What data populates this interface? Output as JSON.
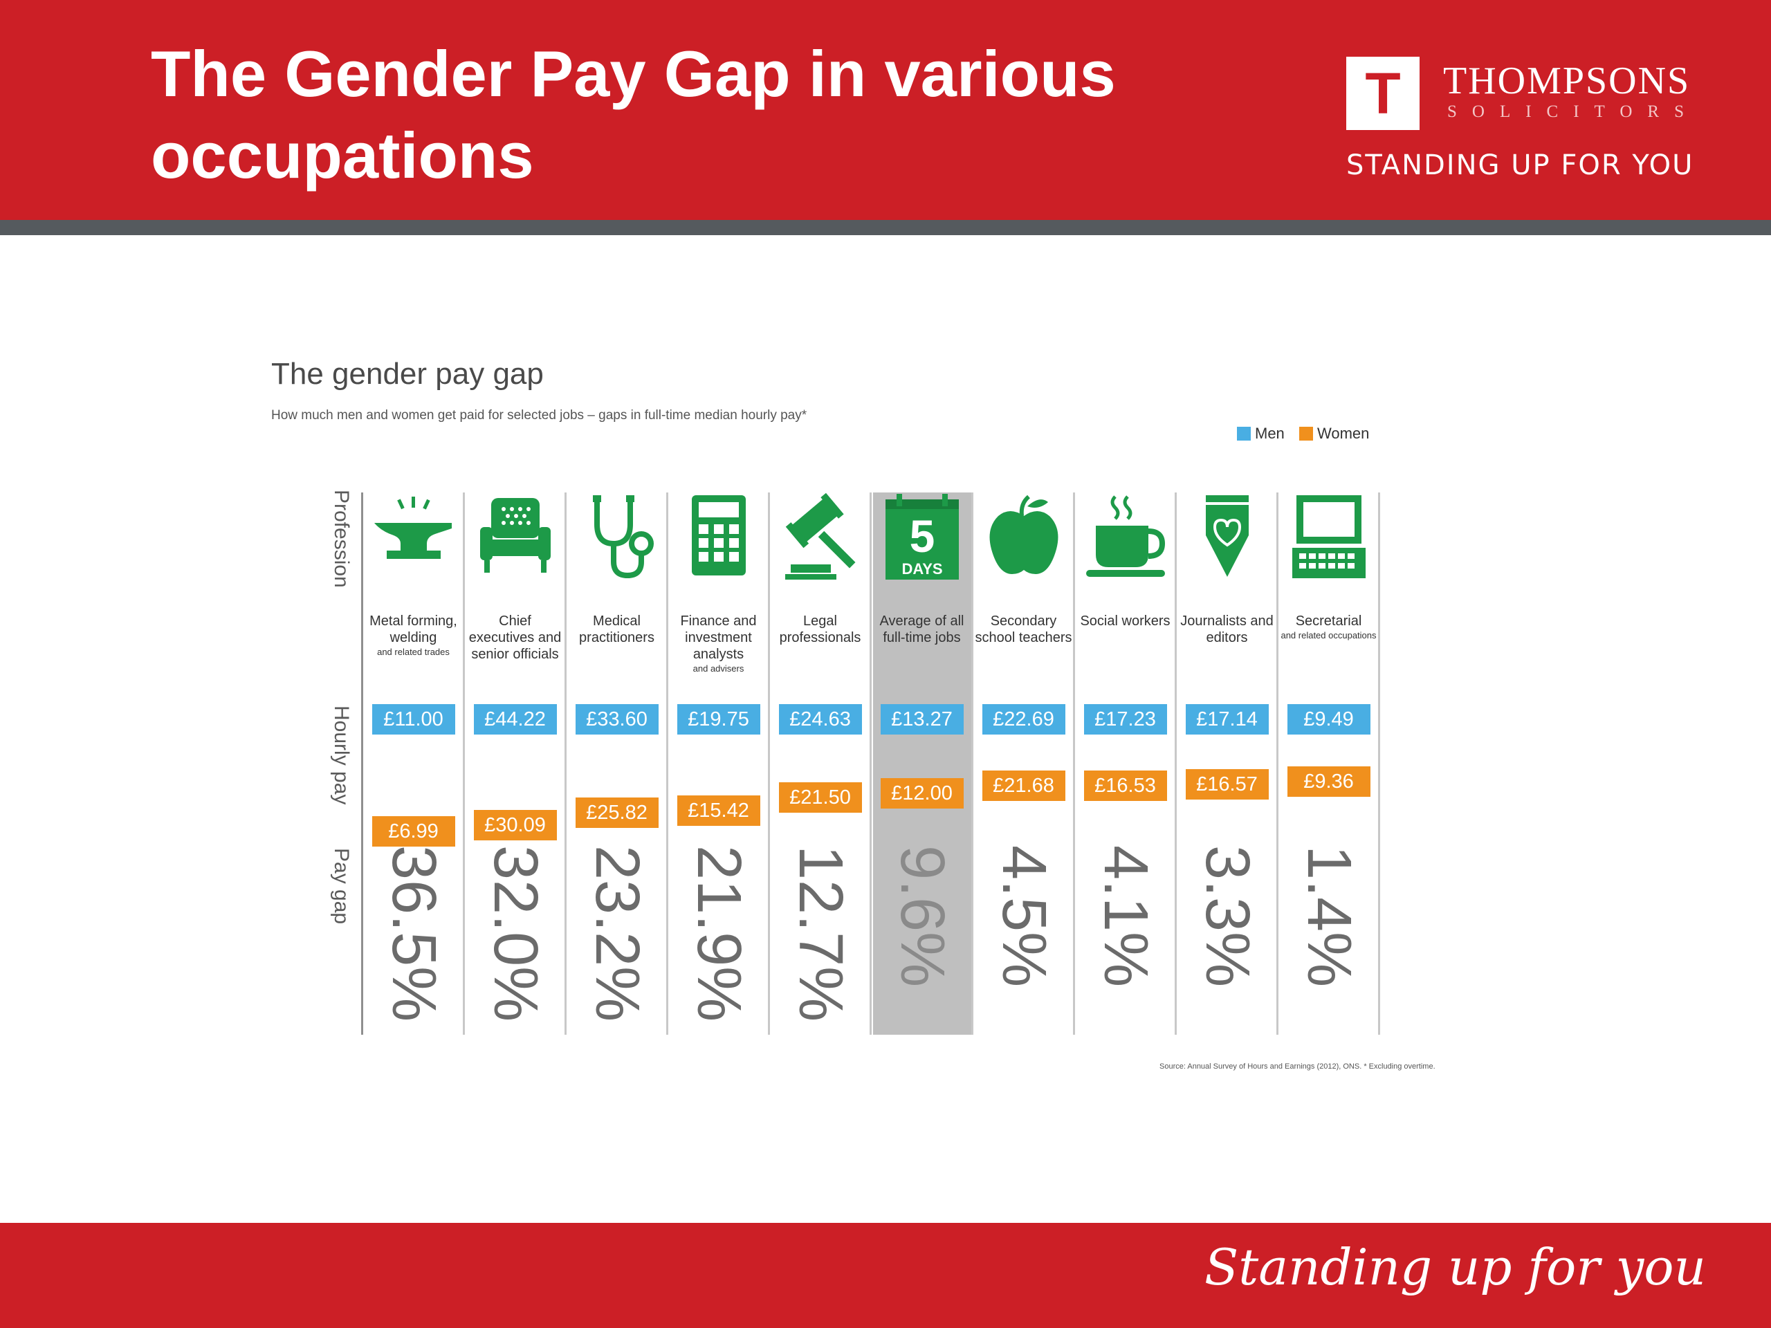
{
  "slide": {
    "title": "The Gender Pay Gap in various occupations",
    "footer_tagline": "Standing up for you"
  },
  "logo": {
    "mark": "T",
    "name": "THOMPSONS",
    "sub": "SOLICITORS",
    "tagline": "STANDING UP FOR YOU"
  },
  "colors": {
    "header_red": "#cc1f26",
    "men": "#49aee3",
    "women": "#f0901d",
    "icon_green": "#1d9a48",
    "highlight": "#bfbfbf"
  },
  "row_labels": {
    "profession": "Profession",
    "hourly_pay": "Hourly pay",
    "pay_gap": "Pay gap"
  },
  "source_note": "Source: Annual Survey of Hours and Earnings (2012), ONS.  * Excluding overtime.",
  "chart_data": {
    "type": "table",
    "title": "The gender pay gap",
    "subtitle": "How much men and women get paid for selected jobs – gaps in full-time median hourly pay*",
    "legend": [
      "Men",
      "Women"
    ],
    "legend_position": "top-right",
    "columns": [
      {
        "icon": "anvil-icon",
        "label": "Metal forming, welding",
        "sub": "and related trades",
        "men": "£11.00",
        "women": "£6.99",
        "gap": "36.5%",
        "men_value": 11.0,
        "women_value": 6.99,
        "gap_value": 36.5
      },
      {
        "icon": "armchair-icon",
        "label": "Chief executives and senior officials",
        "sub": "",
        "men": "£44.22",
        "women": "£30.09",
        "gap": "32.0%",
        "men_value": 44.22,
        "women_value": 30.09,
        "gap_value": 32.0
      },
      {
        "icon": "stethoscope-icon",
        "label": "Medical practitioners",
        "sub": "",
        "men": "£33.60",
        "women": "£25.82",
        "gap": "23.2%",
        "men_value": 33.6,
        "women_value": 25.82,
        "gap_value": 23.2
      },
      {
        "icon": "calculator-icon",
        "label": "Finance and investment analysts",
        "sub": "and advisers",
        "men": "£19.75",
        "women": "£15.42",
        "gap": "21.9%",
        "men_value": 19.75,
        "women_value": 15.42,
        "gap_value": 21.9
      },
      {
        "icon": "gavel-icon",
        "label": "Legal professionals",
        "sub": "",
        "men": "£24.63",
        "women": "£21.50",
        "gap": "12.7%",
        "men_value": 24.63,
        "women_value": 21.5,
        "gap_value": 12.7
      },
      {
        "icon": "calendar-icon",
        "icon_number": "5",
        "icon_text": "DAYS",
        "label": "Average of all full-time jobs",
        "sub": "",
        "men": "£13.27",
        "women": "£12.00",
        "gap": "9.6%",
        "men_value": 13.27,
        "women_value": 12.0,
        "gap_value": 9.6,
        "highlight": true
      },
      {
        "icon": "apple-icon",
        "label": "Secondary school teachers",
        "sub": "",
        "men": "£22.69",
        "women": "£21.68",
        "gap": "4.5%",
        "men_value": 22.69,
        "women_value": 21.68,
        "gap_value": 4.5
      },
      {
        "icon": "coffee-cup-icon",
        "label": "Social workers",
        "sub": "",
        "men": "£17.23",
        "women": "£16.53",
        "gap": "4.1%",
        "men_value": 17.23,
        "women_value": 16.53,
        "gap_value": 4.1
      },
      {
        "icon": "pen-nib-icon",
        "label": "Journalists and editors",
        "sub": "",
        "men": "£17.14",
        "women": "£16.57",
        "gap": "3.3%",
        "men_value": 17.14,
        "women_value": 16.57,
        "gap_value": 3.3
      },
      {
        "icon": "computer-icon",
        "label": "Secretarial",
        "sub": "and related occupations",
        "men": "£9.49",
        "women": "£9.36",
        "gap": "1.4%",
        "men_value": 9.49,
        "women_value": 9.36,
        "gap_value": 1.4
      }
    ]
  }
}
